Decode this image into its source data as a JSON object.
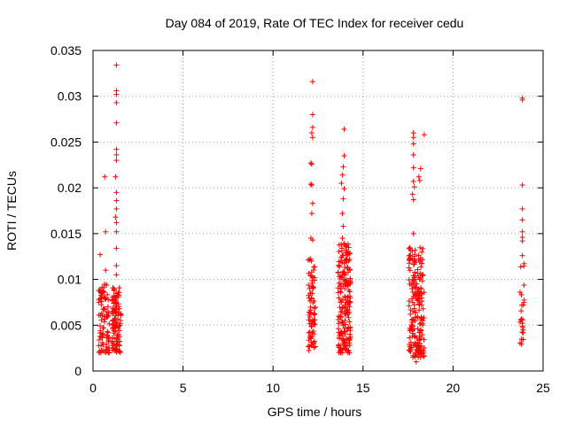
{
  "chart_data": {
    "type": "scatter",
    "title": "Day 084 of 2019, Rate Of TEC Index for receiver cedu",
    "xlabel": "GPS time / hours",
    "ylabel": "ROTI / TECUs",
    "xlim": [
      0,
      25
    ],
    "ylim": [
      0,
      0.035
    ],
    "xticks": [
      0,
      5,
      10,
      15,
      20,
      25
    ],
    "yticks": [
      0,
      0.005,
      0.01,
      0.015,
      0.02,
      0.025,
      0.03,
      0.035
    ],
    "xtick_labels": [
      "0",
      "5",
      "10",
      "15",
      "20",
      "25"
    ],
    "ytick_labels": [
      "0",
      "0.005",
      "0.01",
      "0.015",
      "0.02",
      "0.025",
      "0.03",
      "0.035"
    ],
    "grid": true,
    "marker": "+",
    "color": "#ff0000",
    "clusters": [
      {
        "x_range": [
          0.3,
          0.9
        ],
        "y_range": [
          0.002,
          0.0095
        ],
        "count": 90,
        "outliers": [
          [
            0.4,
            0.0127
          ],
          [
            0.65,
            0.0212
          ],
          [
            0.7,
            0.0152
          ],
          [
            0.7,
            0.011
          ],
          [
            0.35,
            0.0088
          ]
        ]
      },
      {
        "x_range": [
          1.05,
          1.55
        ],
        "y_range": [
          0.002,
          0.0095
        ],
        "count": 110,
        "outliers": [
          [
            1.3,
            0.0334
          ],
          [
            1.3,
            0.0306
          ],
          [
            1.3,
            0.0302
          ],
          [
            1.3,
            0.0293
          ],
          [
            1.3,
            0.0271
          ],
          [
            1.3,
            0.0242
          ],
          [
            1.3,
            0.0236
          ],
          [
            1.3,
            0.023
          ],
          [
            1.25,
            0.0212
          ],
          [
            1.3,
            0.0195
          ],
          [
            1.3,
            0.0186
          ],
          [
            1.3,
            0.0177
          ],
          [
            1.25,
            0.0168
          ],
          [
            1.3,
            0.0162
          ],
          [
            1.3,
            0.0152
          ],
          [
            1.3,
            0.0134
          ],
          [
            1.3,
            0.0115
          ],
          [
            1.3,
            0.0105
          ]
        ]
      },
      {
        "x_range": [
          11.95,
          12.35
        ],
        "y_range": [
          0.0022,
          0.0125
        ],
        "count": 80,
        "outliers": [
          [
            12.2,
            0.0316
          ],
          [
            12.2,
            0.028
          ],
          [
            12.2,
            0.0266
          ],
          [
            12.15,
            0.026
          ],
          [
            12.2,
            0.0255
          ],
          [
            12.1,
            0.0227
          ],
          [
            12.15,
            0.0226
          ],
          [
            12.1,
            0.0204
          ],
          [
            12.15,
            0.0203
          ],
          [
            12.2,
            0.0183
          ],
          [
            12.15,
            0.0172
          ],
          [
            12.1,
            0.0145
          ],
          [
            12.2,
            0.0143
          ]
        ]
      },
      {
        "x_range": [
          13.6,
          14.3
        ],
        "y_range": [
          0.002,
          0.014
        ],
        "count": 200,
        "outliers": [
          [
            13.95,
            0.0264
          ],
          [
            13.95,
            0.0235
          ],
          [
            13.9,
            0.0223
          ],
          [
            13.85,
            0.0214
          ],
          [
            13.8,
            0.0205
          ],
          [
            13.95,
            0.0199
          ],
          [
            13.9,
            0.0188
          ],
          [
            13.85,
            0.0172
          ],
          [
            13.9,
            0.0158
          ],
          [
            13.85,
            0.0145
          ]
        ]
      },
      {
        "x_range": [
          17.55,
          18.4
        ],
        "y_range": [
          0.0015,
          0.0135
        ],
        "count": 200,
        "outliers": [
          [
            17.8,
            0.026
          ],
          [
            17.8,
            0.0255
          ],
          [
            17.8,
            0.0248
          ],
          [
            17.8,
            0.0236
          ],
          [
            17.8,
            0.0222
          ],
          [
            17.8,
            0.0207
          ],
          [
            17.85,
            0.0201
          ],
          [
            17.75,
            0.0193
          ],
          [
            17.8,
            0.0187
          ],
          [
            18.1,
            0.0212
          ],
          [
            18.15,
            0.0208
          ],
          [
            18.2,
            0.0221
          ],
          [
            18.4,
            0.0258
          ],
          [
            17.8,
            0.015
          ],
          [
            17.95,
            0.001
          ]
        ]
      },
      {
        "x_range": [
          23.7,
          23.95
        ],
        "y_range": [
          0.0025,
          0.0125
        ],
        "count": 24,
        "outliers": [
          [
            23.85,
            0.0298
          ],
          [
            23.85,
            0.0296
          ],
          [
            23.85,
            0.0203
          ],
          [
            23.85,
            0.0177
          ],
          [
            23.85,
            0.0165
          ],
          [
            23.85,
            0.0152
          ],
          [
            23.85,
            0.0146
          ],
          [
            23.85,
            0.0142
          ],
          [
            23.85,
            0.0126
          ],
          [
            23.85,
            0.0049
          ],
          [
            23.85,
            0.0052
          ]
        ]
      }
    ]
  }
}
